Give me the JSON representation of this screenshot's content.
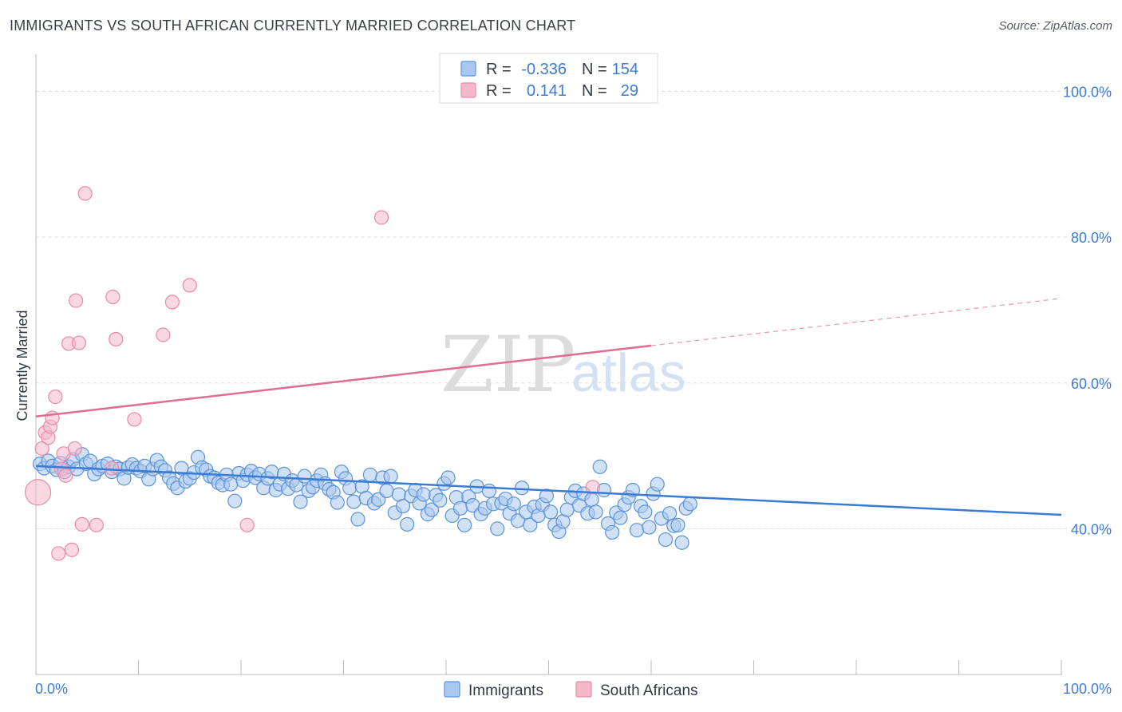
{
  "title": "IMMIGRANTS VS SOUTH AFRICAN CURRENTLY MARRIED CORRELATION CHART",
  "source": "Source: ZipAtlas.com",
  "watermark": {
    "zip": "ZIP",
    "atlas": "atlas"
  },
  "colors": {
    "blue_fill": "#a9c8ef",
    "blue_stroke": "#5b93d9",
    "blue_line": "#3a7bd5",
    "pink_fill": "#f5b8cb",
    "pink_stroke": "#e98aa8",
    "pink_line": "#e06c93",
    "tick": "#3d7bd4",
    "grid": "#dddddd"
  },
  "legend_top": [
    {
      "r_label": "R =",
      "r_value": "-0.336",
      "n_label": "N =",
      "n_value": "154"
    },
    {
      "r_label": "R =",
      "r_value": "0.141",
      "n_label": "N =",
      "n_value": "29"
    }
  ],
  "legend_bottom": [
    "Immigrants",
    "South Africans"
  ],
  "chart_data": {
    "type": "scatter",
    "title": "IMMIGRANTS VS SOUTH AFRICAN CURRENTLY MARRIED CORRELATION CHART",
    "xlabel": "",
    "ylabel": "Currently Married",
    "xlim": [
      0,
      100
    ],
    "ylim": [
      20,
      104
    ],
    "x_tick_labels": [
      "0.0%",
      "100.0%"
    ],
    "y_ticks": [
      40,
      60,
      80,
      100
    ],
    "y_tick_labels": [
      "40.0%",
      "60.0%",
      "80.0%",
      "100.0%"
    ],
    "grid": true,
    "legend_position": "top-center",
    "series": [
      {
        "name": "Immigrants",
        "r": -0.336,
        "n": 154,
        "trend": {
          "x0": 0,
          "y0": 48.6,
          "x1": 100,
          "y1": 41.9,
          "solid_until": 100
        },
        "points": [
          [
            0.4,
            48.9
          ],
          [
            0.8,
            48.3
          ],
          [
            1.2,
            49.3
          ],
          [
            1.6,
            48.6
          ],
          [
            2.0,
            48.1
          ],
          [
            2.4,
            49.0
          ],
          [
            2.8,
            47.8
          ],
          [
            3.2,
            48.5
          ],
          [
            3.6,
            49.5
          ],
          [
            4.0,
            48.2
          ],
          [
            4.5,
            50.2
          ],
          [
            4.9,
            48.9
          ],
          [
            5.3,
            49.3
          ],
          [
            5.7,
            47.5
          ],
          [
            6.1,
            48.2
          ],
          [
            6.5,
            48.6
          ],
          [
            7.0,
            48.9
          ],
          [
            7.4,
            47.8
          ],
          [
            7.8,
            48.5
          ],
          [
            8.2,
            48.2
          ],
          [
            8.6,
            46.9
          ],
          [
            9.0,
            48.4
          ],
          [
            9.4,
            48.8
          ],
          [
            9.8,
            48.3
          ],
          [
            10.2,
            47.9
          ],
          [
            10.6,
            48.6
          ],
          [
            11.0,
            46.8
          ],
          [
            11.4,
            48.2
          ],
          [
            11.8,
            49.4
          ],
          [
            12.2,
            48.5
          ],
          [
            12.6,
            48.0
          ],
          [
            13.0,
            47.0
          ],
          [
            13.4,
            46.2
          ],
          [
            13.8,
            45.6
          ],
          [
            14.2,
            48.3
          ],
          [
            14.6,
            46.5
          ],
          [
            15.0,
            46.9
          ],
          [
            15.4,
            47.7
          ],
          [
            15.8,
            49.8
          ],
          [
            16.2,
            48.4
          ],
          [
            16.6,
            48.1
          ],
          [
            17.0,
            47.2
          ],
          [
            17.4,
            47.0
          ],
          [
            17.8,
            46.3
          ],
          [
            18.2,
            46.0
          ],
          [
            18.6,
            47.4
          ],
          [
            19.0,
            46.1
          ],
          [
            19.4,
            43.8
          ],
          [
            19.8,
            47.6
          ],
          [
            20.2,
            46.6
          ],
          [
            20.6,
            47.4
          ],
          [
            21.0,
            47.9
          ],
          [
            21.4,
            47.0
          ],
          [
            21.8,
            47.5
          ],
          [
            22.2,
            45.6
          ],
          [
            22.6,
            46.9
          ],
          [
            23.0,
            47.8
          ],
          [
            23.4,
            45.3
          ],
          [
            23.8,
            46.1
          ],
          [
            24.2,
            47.5
          ],
          [
            24.6,
            45.5
          ],
          [
            25.0,
            46.6
          ],
          [
            25.4,
            46.0
          ],
          [
            25.8,
            43.7
          ],
          [
            26.2,
            47.2
          ],
          [
            26.6,
            45.2
          ],
          [
            27.0,
            45.7
          ],
          [
            27.4,
            46.6
          ],
          [
            27.8,
            47.4
          ],
          [
            28.2,
            46.2
          ],
          [
            28.6,
            45.4
          ],
          [
            29.0,
            45.0
          ],
          [
            29.4,
            43.6
          ],
          [
            29.8,
            47.8
          ],
          [
            30.2,
            46.9
          ],
          [
            30.6,
            45.6
          ],
          [
            31.0,
            43.7
          ],
          [
            31.4,
            41.3
          ],
          [
            31.8,
            45.8
          ],
          [
            32.2,
            44.2
          ],
          [
            32.6,
            47.4
          ],
          [
            33.0,
            43.5
          ],
          [
            33.4,
            44.0
          ],
          [
            33.8,
            47.0
          ],
          [
            34.2,
            45.2
          ],
          [
            34.6,
            47.2
          ],
          [
            35.0,
            42.2
          ],
          [
            35.4,
            44.7
          ],
          [
            35.8,
            43.1
          ],
          [
            36.2,
            40.6
          ],
          [
            36.6,
            44.5
          ],
          [
            37.0,
            45.3
          ],
          [
            37.4,
            43.5
          ],
          [
            37.8,
            44.7
          ],
          [
            38.2,
            42.0
          ],
          [
            38.6,
            42.6
          ],
          [
            39.0,
            44.6
          ],
          [
            39.4,
            43.9
          ],
          [
            39.8,
            46.2
          ],
          [
            40.2,
            47.0
          ],
          [
            40.6,
            41.8
          ],
          [
            41.0,
            44.3
          ],
          [
            41.4,
            42.8
          ],
          [
            41.8,
            40.5
          ],
          [
            42.2,
            44.4
          ],
          [
            42.6,
            43.2
          ],
          [
            43.0,
            45.8
          ],
          [
            43.4,
            42.0
          ],
          [
            43.8,
            42.8
          ],
          [
            44.2,
            45.2
          ],
          [
            44.6,
            43.4
          ],
          [
            45.0,
            40.0
          ],
          [
            45.4,
            43.5
          ],
          [
            45.8,
            44.1
          ],
          [
            46.2,
            42.1
          ],
          [
            46.6,
            43.4
          ],
          [
            47.0,
            41.1
          ],
          [
            47.4,
            45.6
          ],
          [
            47.8,
            42.3
          ],
          [
            48.2,
            40.5
          ],
          [
            48.6,
            43.0
          ],
          [
            49.0,
            41.8
          ],
          [
            49.4,
            43.3
          ],
          [
            49.8,
            44.5
          ],
          [
            50.2,
            42.3
          ],
          [
            50.6,
            40.5
          ],
          [
            51.0,
            39.6
          ],
          [
            51.4,
            41.0
          ],
          [
            51.8,
            42.6
          ],
          [
            52.2,
            44.3
          ],
          [
            52.6,
            45.2
          ],
          [
            53.0,
            43.2
          ],
          [
            53.4,
            44.8
          ],
          [
            53.8,
            42.1
          ],
          [
            54.2,
            44.0
          ],
          [
            54.6,
            42.3
          ],
          [
            55.0,
            48.5
          ],
          [
            55.4,
            45.3
          ],
          [
            55.8,
            40.7
          ],
          [
            56.2,
            39.5
          ],
          [
            56.6,
            42.2
          ],
          [
            57.0,
            41.5
          ],
          [
            57.4,
            43.3
          ],
          [
            57.8,
            44.3
          ],
          [
            58.2,
            45.3
          ],
          [
            58.6,
            39.8
          ],
          [
            59.0,
            43.1
          ],
          [
            59.4,
            42.3
          ],
          [
            59.8,
            40.2
          ],
          [
            60.2,
            44.8
          ],
          [
            60.6,
            46.1
          ],
          [
            61.0,
            41.4
          ],
          [
            61.4,
            38.5
          ],
          [
            61.8,
            42.1
          ],
          [
            62.2,
            40.4
          ],
          [
            62.6,
            40.5
          ],
          [
            63.0,
            38.1
          ],
          [
            63.4,
            42.8
          ],
          [
            63.8,
            43.4
          ]
        ]
      },
      {
        "name": "South Africans",
        "r": 0.141,
        "n": 29,
        "trend": {
          "x0": 0,
          "y0": 55.4,
          "x1": 100,
          "y1": 71.6,
          "solid_until": 60
        },
        "points": [
          [
            0.2,
            45.0
          ],
          [
            0.6,
            51.0
          ],
          [
            0.9,
            53.2
          ],
          [
            1.2,
            52.5
          ],
          [
            1.4,
            54.0
          ],
          [
            1.6,
            55.2
          ],
          [
            1.9,
            58.1
          ],
          [
            2.2,
            36.6
          ],
          [
            2.5,
            48.2
          ],
          [
            2.7,
            50.3
          ],
          [
            2.9,
            47.3
          ],
          [
            3.2,
            65.4
          ],
          [
            3.5,
            37.1
          ],
          [
            3.8,
            51.0
          ],
          [
            3.9,
            71.3
          ],
          [
            4.2,
            65.5
          ],
          [
            4.5,
            40.6
          ],
          [
            4.8,
            86.0
          ],
          [
            5.9,
            40.5
          ],
          [
            7.4,
            48.3
          ],
          [
            7.5,
            71.8
          ],
          [
            7.8,
            66.0
          ],
          [
            9.6,
            55.0
          ],
          [
            12.4,
            66.6
          ],
          [
            13.3,
            71.1
          ],
          [
            15.0,
            73.4
          ],
          [
            20.6,
            40.5
          ],
          [
            33.7,
            82.7
          ],
          [
            54.3,
            45.7
          ]
        ]
      }
    ]
  }
}
